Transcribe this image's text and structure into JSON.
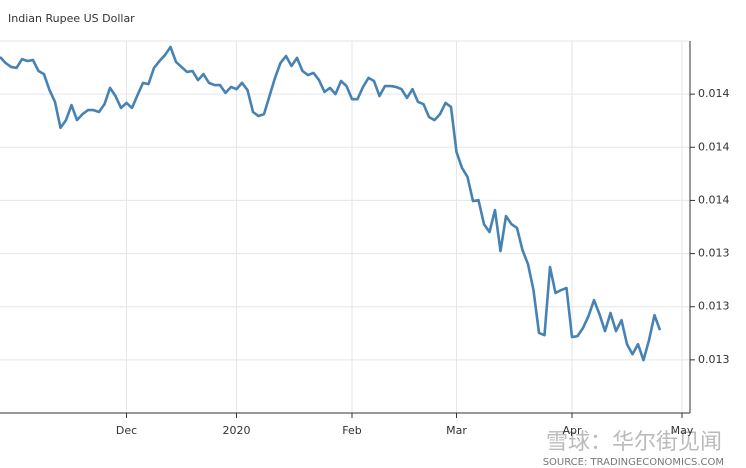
{
  "chart_data": {
    "type": "line",
    "title": "Indian Rupee US Dollar",
    "source": "SOURCE: TRADINGECONOMICS.COM",
    "watermark": "雪球：华尔街见闻",
    "categories": [
      null,
      null,
      null,
      null,
      null,
      null,
      null,
      null,
      null,
      null,
      null,
      null,
      null,
      null,
      null,
      null,
      null,
      null,
      null,
      null,
      null,
      null,
      null,
      "Dec",
      null,
      null,
      null,
      null,
      null,
      null,
      null,
      null,
      null,
      null,
      null,
      null,
      null,
      null,
      null,
      null,
      null,
      null,
      null,
      "2020",
      null,
      null,
      null,
      null,
      null,
      null,
      null,
      null,
      null,
      null,
      null,
      null,
      null,
      null,
      null,
      null,
      null,
      null,
      null,
      null,
      "Feb",
      null,
      null,
      null,
      null,
      null,
      null,
      null,
      null,
      null,
      null,
      null,
      null,
      null,
      null,
      null,
      null,
      null,
      null,
      "Mar",
      null,
      null,
      null,
      null,
      null,
      null,
      null,
      null,
      null,
      null,
      null,
      null,
      null,
      null,
      null,
      null,
      null,
      null,
      null,
      null,
      "Apr",
      null,
      null,
      null,
      null,
      null,
      null,
      null,
      null,
      null,
      null,
      null,
      null,
      null,
      null,
      null,
      null,
      null,
      null,
      null,
      "May"
    ],
    "series": [
      {
        "name": "Indian Rupee US Dollar",
        "color": "#4682b4",
        "values": [
          0.014029,
          0.01401,
          0.013997,
          0.013994,
          0.014022,
          0.014016,
          0.014019,
          0.013984,
          0.013974,
          0.013923,
          0.013885,
          0.013802,
          0.013827,
          0.013875,
          0.013827,
          0.013846,
          0.013859,
          0.013859,
          0.013853,
          0.013878,
          0.01393,
          0.013904,
          0.013866,
          0.013882,
          0.013866,
          0.013907,
          0.013946,
          0.013942,
          0.013994,
          0.014016,
          0.014035,
          0.014061,
          0.014013,
          0.013997,
          0.013981,
          0.013984,
          0.013955,
          0.013974,
          0.013946,
          0.013939,
          0.013939,
          0.013914,
          0.013933,
          0.013926,
          0.013946,
          0.013923,
          0.013853,
          0.01384,
          0.013846,
          0.013904,
          0.013962,
          0.01401,
          0.014032,
          0.014,
          0.014026,
          0.013984,
          0.013971,
          0.013978,
          0.013955,
          0.013917,
          0.01393,
          0.01391,
          0.013952,
          0.013936,
          0.013894,
          0.013894,
          0.013933,
          0.013962,
          0.013952,
          0.013904,
          0.013936,
          0.013936,
          0.013933,
          0.013926,
          0.013898,
          0.013926,
          0.013885,
          0.013878,
          0.013837,
          0.013827,
          0.013846,
          0.013882,
          0.013869,
          0.013725,
          0.013674,
          0.013645,
          0.013568,
          0.013571,
          0.013494,
          0.013469,
          0.013539,
          0.013408,
          0.01352,
          0.013494,
          0.013482,
          0.013411,
          0.013366,
          0.013283,
          0.013146,
          0.013139,
          0.013357,
          0.013274,
          0.013283,
          0.01329,
          0.013133,
          0.013136,
          0.013162,
          0.0132,
          0.013251,
          0.013206,
          0.013152,
          0.01321,
          0.013152,
          0.013187,
          0.01311,
          0.013078,
          0.01311,
          0.013059,
          0.013123,
          0.013203,
          0.013155,
          null,
          null,
          null,
          null
        ]
      }
    ],
    "ylim": [
      0.01289,
      0.01408
    ],
    "yticks": [
      {
        "value": 0.01391,
        "label": "0.014"
      },
      {
        "value": 0.01374,
        "label": "0.014"
      },
      {
        "value": 0.01357,
        "label": "0.014"
      },
      {
        "value": 0.0134,
        "label": "0.013"
      },
      {
        "value": 0.01323,
        "label": "0.013"
      },
      {
        "value": 0.01306,
        "label": "0.013"
      }
    ],
    "grid": true
  }
}
